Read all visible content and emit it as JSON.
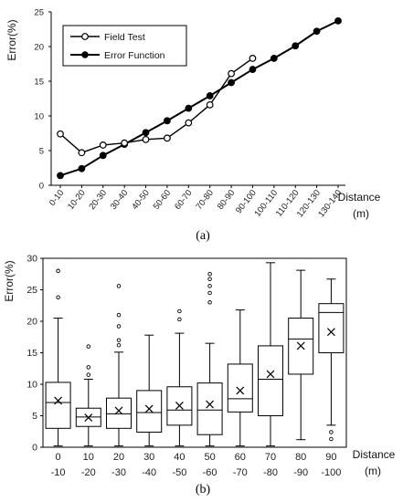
{
  "chart_data": [
    {
      "panel": "(a)",
      "type": "line",
      "xlabel": "Distance",
      "xlabel_unit": "(m)",
      "ylabel": "Error(%)",
      "ylim": [
        0,
        25
      ],
      "yticks": [
        "0",
        "5",
        "10",
        "15",
        "20",
        "25"
      ],
      "grid": false,
      "legend_position": "top-left",
      "categories": [
        "0-10",
        "10-20",
        "20-30",
        "30-40",
        "40-50",
        "50-60",
        "60-70",
        "70-80",
        "80-90",
        "90-100",
        "100-110",
        "110-120",
        "120-130",
        "130-140"
      ],
      "series": [
        {
          "name": "Field Test",
          "marker": "open-circle",
          "values": [
            7.4,
            4.7,
            5.8,
            6.1,
            6.6,
            6.8,
            9.0,
            11.6,
            16.1,
            18.3,
            null,
            null,
            null,
            null
          ]
        },
        {
          "name": "Error Function",
          "marker": "filled-circle",
          "values": [
            1.4,
            2.4,
            4.3,
            5.9,
            7.6,
            9.3,
            11.1,
            12.9,
            14.8,
            16.7,
            18.3,
            20.1,
            22.2,
            23.7
          ]
        }
      ]
    },
    {
      "panel": "(b)",
      "type": "box",
      "xlabel": "Distance",
      "xlabel_unit": "(m)",
      "ylabel": "Error(%)",
      "ylim": [
        0,
        30
      ],
      "yticks": [
        "0",
        "5",
        "10",
        "15",
        "20",
        "25",
        "30"
      ],
      "grid": false,
      "categories": [
        {
          "top": "0",
          "bottom": "-10"
        },
        {
          "top": "10",
          "bottom": "-20"
        },
        {
          "top": "20",
          "bottom": "-30"
        },
        {
          "top": "30",
          "bottom": "-40"
        },
        {
          "top": "40",
          "bottom": "-50"
        },
        {
          "top": "50",
          "bottom": "-60"
        },
        {
          "top": "60",
          "bottom": "-70"
        },
        {
          "top": "70",
          "bottom": "-80"
        },
        {
          "top": "80",
          "bottom": "-90"
        },
        {
          "top": "90",
          "bottom": "-100"
        }
      ],
      "boxes": [
        {
          "min": 0.2,
          "q1": 3.0,
          "median": 7.1,
          "q3": 10.3,
          "max": 20.5,
          "mean": 7.4,
          "outliers": [
            23.8,
            28.0
          ]
        },
        {
          "min": 0.2,
          "q1": 3.3,
          "median": 4.8,
          "q3": 6.2,
          "max": 10.8,
          "mean": 4.7,
          "outliers": [
            11.5,
            12.7,
            16.0
          ]
        },
        {
          "min": 0.2,
          "q1": 3.0,
          "median": 5.3,
          "q3": 7.8,
          "max": 15.1,
          "mean": 5.8,
          "outliers": [
            16.2,
            17.0,
            19.2,
            21.0,
            25.6
          ]
        },
        {
          "min": 0.2,
          "q1": 2.4,
          "median": 5.5,
          "q3": 9.0,
          "max": 17.8,
          "mean": 6.1,
          "outliers": []
        },
        {
          "min": 0.2,
          "q1": 3.5,
          "median": 5.9,
          "q3": 9.6,
          "max": 18.1,
          "mean": 6.6,
          "outliers": [
            20.3,
            21.6
          ]
        },
        {
          "min": 0.2,
          "q1": 2.0,
          "median": 5.9,
          "q3": 10.2,
          "max": 16.5,
          "mean": 6.8,
          "outliers": [
            23.0,
            24.5,
            25.6,
            26.7,
            27.5
          ]
        },
        {
          "min": 0.2,
          "q1": 5.6,
          "median": 7.7,
          "q3": 13.2,
          "max": 21.8,
          "mean": 9.0,
          "outliers": []
        },
        {
          "min": 0.2,
          "q1": 5.0,
          "median": 10.8,
          "q3": 16.1,
          "max": 29.3,
          "mean": 11.6,
          "outliers": []
        },
        {
          "min": 1.2,
          "q1": 11.6,
          "median": 17.2,
          "q3": 20.5,
          "max": 28.1,
          "mean": 16.1,
          "outliers": []
        },
        {
          "min": 3.5,
          "q1": 15.0,
          "median": 21.4,
          "q3": 22.8,
          "max": 26.7,
          "mean": 18.3,
          "outliers": [
            1.3,
            2.4
          ]
        }
      ]
    }
  ]
}
